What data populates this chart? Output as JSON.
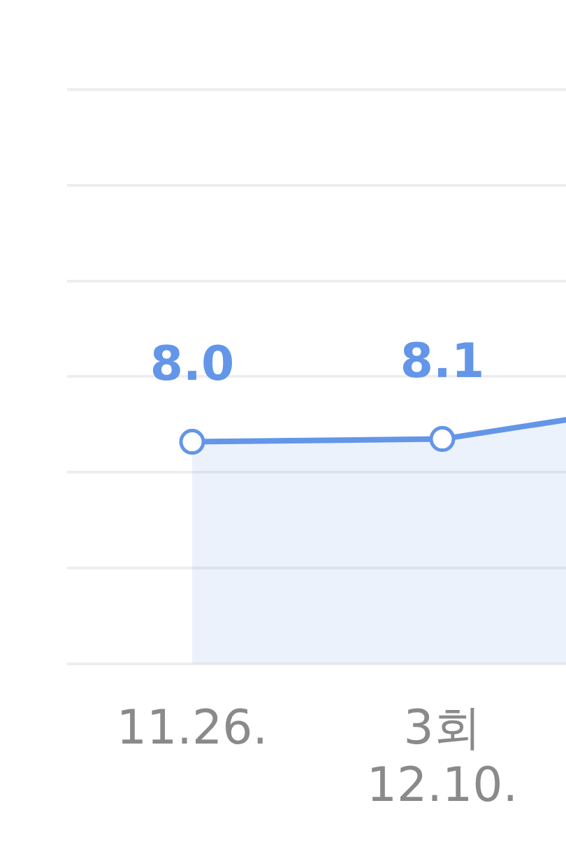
{
  "chart_data": {
    "type": "area",
    "categories": [
      "11.26.",
      "3회\n12.10.",
      null
    ],
    "series": [
      {
        "color": "#6396e8",
        "values": [
          8.0,
          8.1,
          9.5
        ],
        "value_labels": [
          "8.0",
          "8.1",
          null
        ]
      }
    ],
    "ylim": [
      0,
      20.7
    ],
    "yticks": [
      {
        "value": 0,
        "label": null
      },
      {
        "value": 3.45,
        "label": null
      },
      {
        "value": 6.9,
        "label": null
      },
      {
        "value": 10.35,
        "label": null
      },
      {
        "value": 13.8,
        "label": null
      },
      {
        "value": 17.25,
        "label": null
      },
      {
        "value": 20.7,
        "label": null
      }
    ],
    "grid": "y",
    "marker": "circle",
    "tick_labels": "x"
  }
}
